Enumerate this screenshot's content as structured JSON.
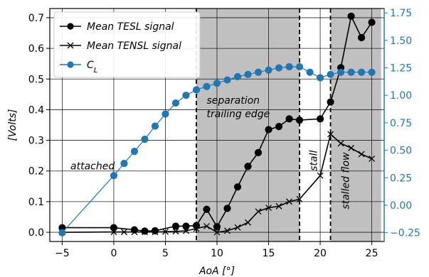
{
  "chart_data": {
    "type": "line",
    "xlabel": "AoA [°]",
    "ylabel": "[Volts]",
    "xlim": [
      -6.2,
      26.2
    ],
    "ylim": [
      -0.03,
      0.73
    ],
    "y2lim": [
      -0.33,
      1.79
    ],
    "x_ticks": [
      -5,
      0,
      5,
      10,
      15,
      20,
      25
    ],
    "y_ticks": [
      0.0,
      0.1,
      0.2,
      0.3,
      0.4,
      0.5,
      0.6,
      0.7
    ],
    "y2_ticks": [
      -0.25,
      0.0,
      0.25,
      0.5,
      0.75,
      1.0,
      1.25,
      1.5,
      1.75
    ],
    "x_tick_labels": [
      "−5",
      "0",
      "5",
      "10",
      "15",
      "20",
      "25"
    ],
    "y_tick_labels": [
      "0.0",
      "0.1",
      "0.2",
      "0.3",
      "0.4",
      "0.5",
      "0.6",
      "0.7"
    ],
    "y2_tick_labels": [
      "−0.25",
      "0.00",
      "0.25",
      "0.50",
      "0.75",
      "1.00",
      "1.25",
      "1.50",
      "1.75"
    ],
    "grid": true,
    "legend_position": "top-left",
    "shaded_regions": [
      {
        "x_start": 8,
        "x_end": 18,
        "color": "#c0c0c0"
      },
      {
        "x_start": 21,
        "x_end": 25.9,
        "color": "#c0c0c0"
      }
    ],
    "vertical_lines": [
      8,
      18,
      21
    ],
    "annotations": [
      {
        "text": "attached",
        "x": -4.2,
        "y": 0.205,
        "rotate": 0
      },
      {
        "text": "separation",
        "x": 9.0,
        "y": 0.42,
        "rotate": 0
      },
      {
        "text": "trailing edge",
        "x": 9.0,
        "y": 0.375,
        "rotate": 0
      },
      {
        "text": "stall",
        "x": 19.7,
        "y": 0.2,
        "rotate": -90
      },
      {
        "text": "stalled flow",
        "x": 22.8,
        "y": 0.075,
        "rotate": -90
      }
    ],
    "series": [
      {
        "name": "Mean TESL signal",
        "axis": "left",
        "color": "#000000",
        "marker": "circle",
        "x": [
          -5,
          0,
          2,
          3,
          4,
          6,
          7,
          8,
          9,
          10,
          11,
          12,
          13,
          14,
          15,
          16,
          17,
          18,
          20,
          21,
          22,
          23,
          24,
          25
        ],
        "y": [
          0.015,
          0.015,
          0.008,
          0.004,
          0.005,
          0.02,
          0.02,
          0.022,
          0.075,
          0.018,
          0.078,
          0.148,
          0.215,
          0.26,
          0.335,
          0.345,
          0.37,
          0.366,
          0.37,
          0.425,
          0.537,
          0.705,
          0.635,
          0.685
        ]
      },
      {
        "name": "Mean TENSL signal",
        "axis": "left",
        "color": "#000000",
        "marker": "x",
        "x": [
          -5,
          0,
          1,
          2,
          3,
          4,
          5,
          6,
          7,
          8,
          9,
          10,
          11,
          12,
          13,
          14,
          15,
          16,
          17,
          18,
          20,
          21,
          22,
          23,
          24,
          25
        ],
        "y": [
          0.0,
          0.001,
          0.001,
          0.001,
          0.001,
          0.001,
          0.002,
          0.003,
          0.005,
          0.012,
          0.02,
          0.0,
          0.005,
          0.016,
          0.032,
          0.068,
          0.08,
          0.085,
          0.1,
          0.108,
          0.185,
          0.32,
          0.29,
          0.275,
          0.255,
          0.24
        ]
      },
      {
        "name": "C_L",
        "axis": "right",
        "color": "#1f77b4",
        "marker": "circle",
        "x": [
          -5,
          0,
          1,
          2,
          3,
          4,
          5,
          6,
          7,
          8,
          9,
          10,
          11,
          12,
          13,
          14,
          15,
          16,
          17,
          18,
          19,
          20,
          21,
          22,
          23,
          24,
          25
        ],
        "y": [
          -0.25,
          0.27,
          0.38,
          0.49,
          0.6,
          0.72,
          0.83,
          0.93,
          1.0,
          1.05,
          1.08,
          1.11,
          1.14,
          1.17,
          1.19,
          1.21,
          1.23,
          1.25,
          1.26,
          1.26,
          1.21,
          1.16,
          1.19,
          1.21,
          1.21,
          1.21,
          1.21
        ]
      }
    ]
  }
}
